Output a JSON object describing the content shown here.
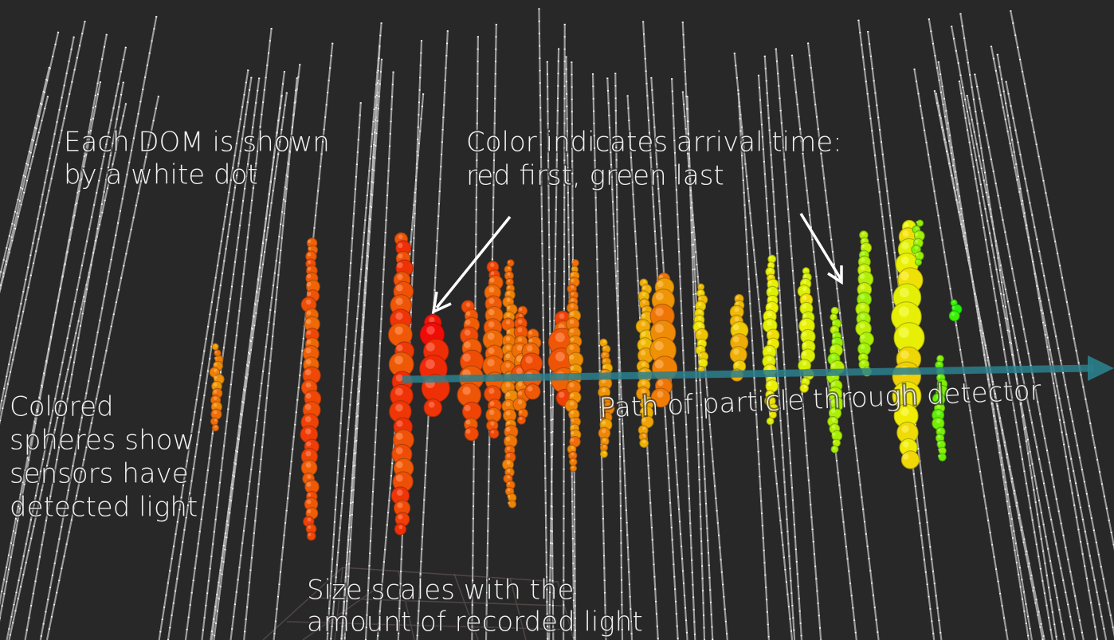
{
  "annotations": [
    {
      "lines": [
        "Each DOM is shown",
        "by a white dot"
      ]
    },
    {
      "lines": [
        "Color indicates arrival time:",
        "red first, green last"
      ]
    },
    {
      "lines": [
        "Colored",
        "spheres show",
        "sensors have",
        "detected light"
      ]
    },
    {
      "lines": [
        "Path of particle through detector"
      ]
    },
    {
      "lines": [
        "Size scales with the",
        "amount of recorded light"
      ]
    }
  ]
}
